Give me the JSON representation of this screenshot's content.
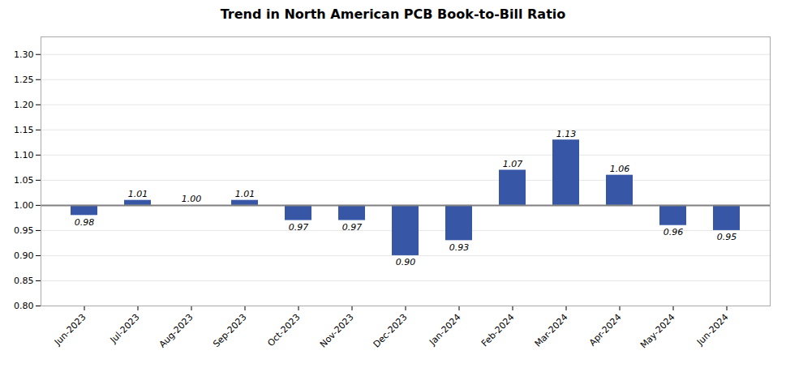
{
  "chart_data": {
    "type": "bar",
    "title": "Trend in North American PCB Book-to-Bill Ratio",
    "categories": [
      "Jun-2023",
      "Jul-2023",
      "Aug-2023",
      "Sep-2023",
      "Oct-2023",
      "Nov-2023",
      "Dec-2023",
      "Jan-2024",
      "Feb-2024",
      "Mar-2024",
      "Apr-2024",
      "May-2024",
      "Jun-2024"
    ],
    "values": [
      0.98,
      1.01,
      1.0,
      1.01,
      0.97,
      0.97,
      0.9,
      0.93,
      1.07,
      1.13,
      1.06,
      0.96,
      0.95
    ],
    "value_labels": [
      "0.98",
      "1.01",
      "1.00",
      "1.01",
      "0.97",
      "0.97",
      "0.90",
      "0.93",
      "1.07",
      "1.13",
      "1.06",
      "0.96",
      "0.95"
    ],
    "baseline": 1.0,
    "color": "#3757A6",
    "ylim": [
      0.8,
      1.335
    ],
    "yticks": [
      {
        "value": 0.8,
        "label": "0.80"
      },
      0.85,
      {
        "value": 0.9,
        "label": "0.90"
      },
      0.95,
      {
        "value": 1.0,
        "label": "1.00"
      },
      1.05,
      {
        "value": 1.1,
        "label": "1.10"
      },
      1.15,
      {
        "value": 1.2,
        "label": "1.20"
      },
      1.25,
      {
        "value": 1.3,
        "label": "1.30"
      }
    ],
    "grid": true,
    "data_labels": true
  }
}
